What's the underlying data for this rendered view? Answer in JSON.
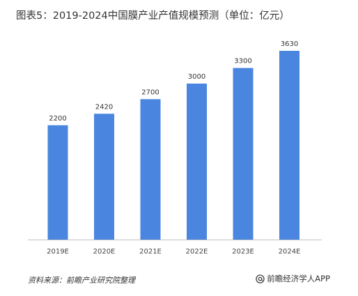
{
  "chart_data": {
    "type": "bar",
    "title": "图表5：2019-2024中国膜产业产值规模预测（单位：亿元）",
    "categories": [
      "2019E",
      "2020E",
      "2021E",
      "2022E",
      "2023E",
      "2024E"
    ],
    "values": [
      2200,
      2420,
      2700,
      3000,
      3300,
      3630
    ],
    "data_labels": [
      "2200",
      "2420",
      "2700",
      "3000",
      "3300",
      "3630"
    ],
    "ylim": [
      0,
      3630
    ],
    "grid": false,
    "legend": "none",
    "bar_color": "#4a86e0",
    "axis_color": "#bfbfbf"
  },
  "footer": {
    "source": "资料来源：前瞻产业研究院整理",
    "brand": "前瞻经济学人APP"
  },
  "icons": {
    "brand_icon": "at-icon"
  }
}
